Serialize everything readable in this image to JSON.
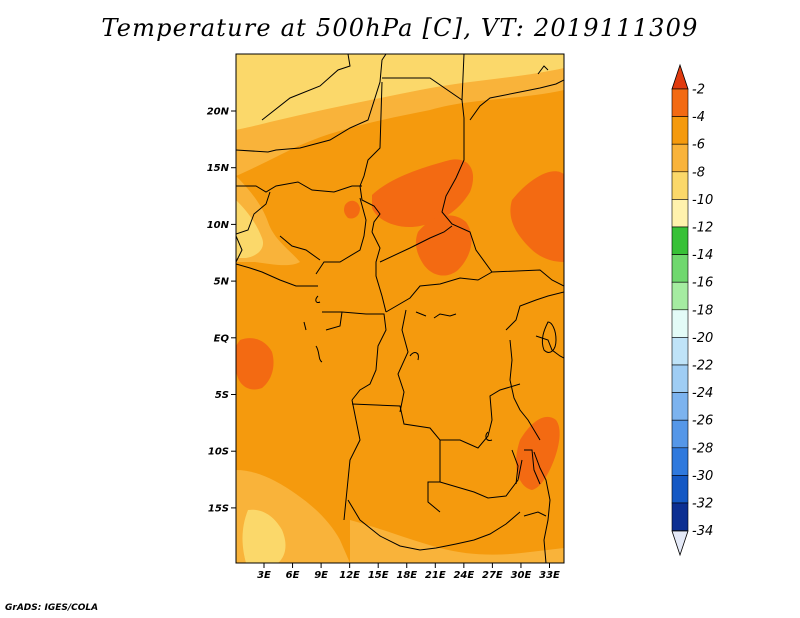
{
  "title": "Temperature at 500hPa [C], VT: 2019111309",
  "footer": "GrADS: IGES/COLA",
  "axes": {
    "x_ticks": [
      "3E",
      "6E",
      "9E",
      "12E",
      "15E",
      "18E",
      "21E",
      "24E",
      "27E",
      "30E",
      "33E"
    ],
    "y_ticks": [
      "20N",
      "15N",
      "10N",
      "5N",
      "EQ",
      "5S",
      "10S",
      "15S"
    ]
  },
  "colorbar": {
    "levels": [
      "-2",
      "-4",
      "-6",
      "-8",
      "-10",
      "-12",
      "-14",
      "-16",
      "-18",
      "-20",
      "-22",
      "-24",
      "-26",
      "-28",
      "-30",
      "-32",
      "-34"
    ],
    "colors": [
      "#e03a0e",
      "#f36a12",
      "#f59a0d",
      "#f9b33a",
      "#fbd86a",
      "#fff2ad",
      "#37c137",
      "#6fd86e",
      "#a5eca1",
      "#e3fbf7",
      "#bfe3f8",
      "#9fcdf4",
      "#7cb3ef",
      "#5597e8",
      "#2f79dd",
      "#1458c4",
      "#0c2f92",
      "#0b1260"
    ],
    "top_triangle": "#e03a0e",
    "bottom_triangle": "#e4e9f7"
  },
  "field_colors": {
    "band_minus10": "#fbd86a",
    "band_minus8": "#f9b33a",
    "band_minus6": "#f59a0d",
    "band_minus4": "#f36a12",
    "band_minus12": "#fff2ad"
  }
}
